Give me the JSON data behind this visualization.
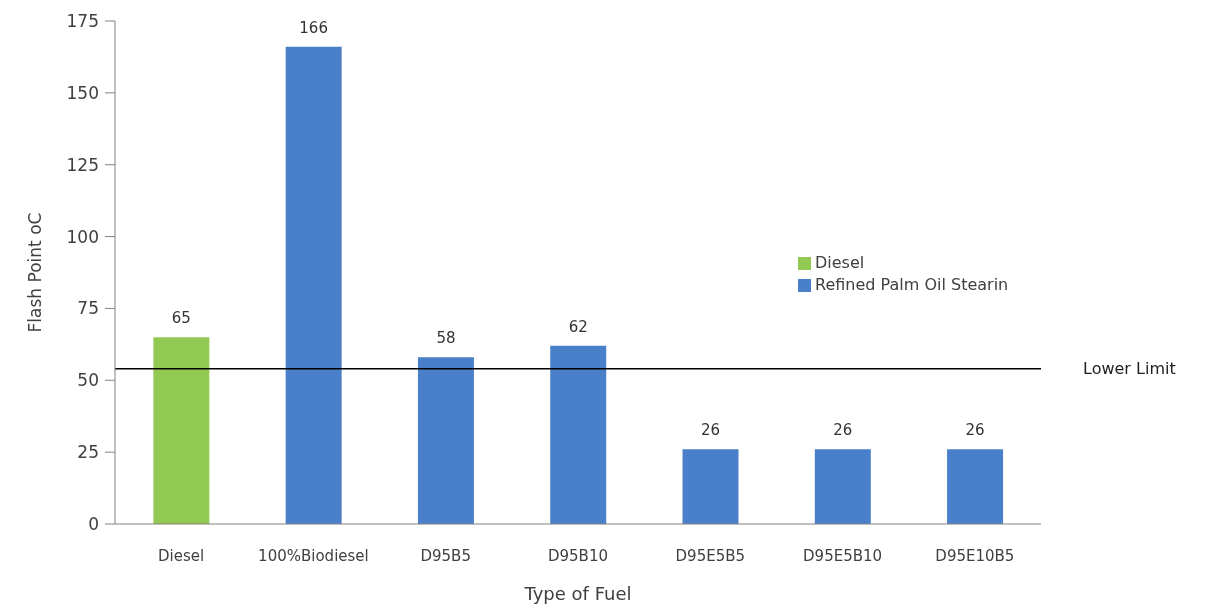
{
  "chart_data": {
    "type": "bar",
    "xlabel": "Type of Fuel",
    "ylabel": "Flash Point oC",
    "categories": [
      "Diesel",
      "100%Biodiesel",
      "D95B5",
      "D95B10",
      "D95E5B5",
      "D95E5B10",
      "D95E10B5"
    ],
    "series": [
      {
        "name": "Diesel",
        "color": "#92c953",
        "values": [
          65,
          null,
          null,
          null,
          null,
          null,
          null
        ]
      },
      {
        "name": "Refined Palm Oil Stearin",
        "color": "#4a7fc9",
        "values": [
          null,
          166,
          58,
          62,
          26,
          26,
          26
        ]
      }
    ],
    "ylim": [
      0,
      175
    ],
    "yticks": [
      0,
      25,
      50,
      75,
      100,
      125,
      150,
      175
    ],
    "grid": false,
    "legend": "right",
    "data_labels": true,
    "ref_lines": [
      {
        "axis": "y",
        "value": 54,
        "label": "Lower Limit",
        "color": "#000000"
      }
    ]
  }
}
